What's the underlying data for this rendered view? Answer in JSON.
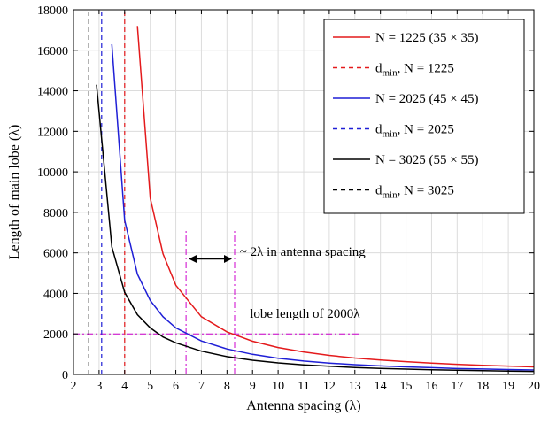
{
  "chart_data": {
    "type": "line",
    "xlabel": "Antenna spacing (λ)",
    "ylabel": "Length of main lobe (λ)",
    "xlim": [
      2,
      20
    ],
    "ylim": [
      0,
      18000
    ],
    "xticks": [
      2,
      3,
      4,
      5,
      6,
      7,
      8,
      9,
      10,
      11,
      12,
      13,
      14,
      15,
      16,
      17,
      18,
      19,
      20
    ],
    "yticks": [
      0,
      2000,
      4000,
      6000,
      8000,
      10000,
      12000,
      14000,
      16000,
      18000
    ],
    "grid": true,
    "legend_position": "top-right",
    "series": [
      {
        "name": "N = 1225 (35 × 35)",
        "color": "#e41a1c",
        "style": "solid",
        "x": [
          4.5,
          5,
          5.5,
          6,
          7,
          8,
          9,
          10,
          11,
          12,
          13,
          14,
          15,
          16,
          17,
          18,
          19,
          20
        ],
        "y": [
          17200,
          8700,
          5950,
          4400,
          2850,
          2100,
          1640,
          1330,
          1110,
          940,
          810,
          710,
          630,
          560,
          500,
          450,
          410,
          370
        ]
      },
      {
        "name": "d_min, N = 1225",
        "color": "#e41a1c",
        "style": "dashed",
        "x": [
          4,
          4
        ],
        "y": [
          0,
          18000
        ]
      },
      {
        "name": "N = 2025 (45 × 45)",
        "color": "#1f1fd6",
        "style": "solid",
        "x": [
          3.5,
          4,
          4.5,
          5,
          5.5,
          6,
          7,
          8,
          9,
          10,
          11,
          12,
          13,
          14,
          15,
          16,
          17,
          18,
          19,
          20
        ],
        "y": [
          16300,
          7600,
          4950,
          3650,
          2850,
          2300,
          1650,
          1260,
          990,
          800,
          660,
          560,
          480,
          420,
          370,
          330,
          290,
          265,
          240,
          220
        ]
      },
      {
        "name": "d_min, N = 2025",
        "color": "#1f1fd6",
        "style": "dashed",
        "x": [
          3.1,
          3.1
        ],
        "y": [
          0,
          18000
        ]
      },
      {
        "name": "N = 3025 (55 × 55)",
        "color": "#000000",
        "style": "solid",
        "x": [
          2.9,
          3.5,
          4,
          4.5,
          5,
          5.5,
          6,
          7,
          8,
          9,
          10,
          11,
          12,
          13,
          14,
          15,
          16,
          17,
          18,
          19,
          20
        ],
        "y": [
          14300,
          6300,
          4050,
          2950,
          2300,
          1850,
          1560,
          1150,
          880,
          700,
          570,
          470,
          400,
          340,
          295,
          260,
          230,
          205,
          185,
          165,
          150
        ]
      },
      {
        "name": "d_min, N = 3025",
        "color": "#000000",
        "style": "dashed",
        "x": [
          2.6,
          2.6
        ],
        "y": [
          0,
          18000
        ]
      }
    ],
    "legend": [
      {
        "main": "N = 1225 (35 × 35)",
        "sub": "",
        "tail": "",
        "series": 0
      },
      {
        "main": "d",
        "sub": "min",
        "tail": ", N = 1225",
        "series": 1
      },
      {
        "main": "N = 2025 (45 × 45)",
        "sub": "",
        "tail": "",
        "series": 2
      },
      {
        "main": "d",
        "sub": "min",
        "tail": ", N = 2025",
        "series": 3
      },
      {
        "main": "N = 3025 (55 × 55)",
        "sub": "",
        "tail": "",
        "series": 4
      },
      {
        "main": "d",
        "sub": "min",
        "tail": ", N = 3025",
        "series": 5
      }
    ],
    "annotations": {
      "color": "#cc00cc",
      "threshold_line": {
        "y": 2000,
        "x_start": 2,
        "x_end": 13.2
      },
      "threshold_text": "lobe length of 2000λ",
      "threshold_text_at": {
        "x": 13.2,
        "y": 2800
      },
      "vertical_lines": [
        {
          "x": 6.4,
          "y_start": 0,
          "y_end": 7200
        },
        {
          "x": 8.3,
          "y_start": 0,
          "y_end": 7200
        }
      ],
      "arrow": {
        "x1": 6.4,
        "x2": 8.3,
        "y": 5700
      },
      "arrow_text": "~ 2λ in antenna spacing",
      "arrow_text_at": {
        "x": 8.5,
        "y": 5850
      }
    }
  }
}
